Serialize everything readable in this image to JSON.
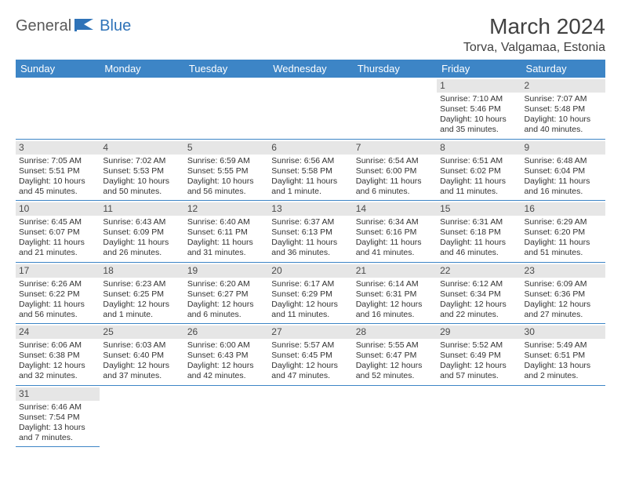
{
  "logo": {
    "part1": "General",
    "part2": "Blue"
  },
  "title": "March 2024",
  "location": "Torva, Valgamaa, Estonia",
  "colors": {
    "header_bg": "#3d85c6",
    "header_text": "#ffffff",
    "daynum_bg": "#e6e6e6",
    "rule": "#3d85c6",
    "logo_gray": "#5a5a5a",
    "logo_blue": "#2f73b8"
  },
  "weekdays": [
    "Sunday",
    "Monday",
    "Tuesday",
    "Wednesday",
    "Thursday",
    "Friday",
    "Saturday"
  ],
  "weeks": [
    [
      null,
      null,
      null,
      null,
      null,
      {
        "n": "1",
        "sr": "Sunrise: 7:10 AM",
        "ss": "Sunset: 5:46 PM",
        "d1": "Daylight: 10 hours",
        "d2": "and 35 minutes."
      },
      {
        "n": "2",
        "sr": "Sunrise: 7:07 AM",
        "ss": "Sunset: 5:48 PM",
        "d1": "Daylight: 10 hours",
        "d2": "and 40 minutes."
      }
    ],
    [
      {
        "n": "3",
        "sr": "Sunrise: 7:05 AM",
        "ss": "Sunset: 5:51 PM",
        "d1": "Daylight: 10 hours",
        "d2": "and 45 minutes."
      },
      {
        "n": "4",
        "sr": "Sunrise: 7:02 AM",
        "ss": "Sunset: 5:53 PM",
        "d1": "Daylight: 10 hours",
        "d2": "and 50 minutes."
      },
      {
        "n": "5",
        "sr": "Sunrise: 6:59 AM",
        "ss": "Sunset: 5:55 PM",
        "d1": "Daylight: 10 hours",
        "d2": "and 56 minutes."
      },
      {
        "n": "6",
        "sr": "Sunrise: 6:56 AM",
        "ss": "Sunset: 5:58 PM",
        "d1": "Daylight: 11 hours",
        "d2": "and 1 minute."
      },
      {
        "n": "7",
        "sr": "Sunrise: 6:54 AM",
        "ss": "Sunset: 6:00 PM",
        "d1": "Daylight: 11 hours",
        "d2": "and 6 minutes."
      },
      {
        "n": "8",
        "sr": "Sunrise: 6:51 AM",
        "ss": "Sunset: 6:02 PM",
        "d1": "Daylight: 11 hours",
        "d2": "and 11 minutes."
      },
      {
        "n": "9",
        "sr": "Sunrise: 6:48 AM",
        "ss": "Sunset: 6:04 PM",
        "d1": "Daylight: 11 hours",
        "d2": "and 16 minutes."
      }
    ],
    [
      {
        "n": "10",
        "sr": "Sunrise: 6:45 AM",
        "ss": "Sunset: 6:07 PM",
        "d1": "Daylight: 11 hours",
        "d2": "and 21 minutes."
      },
      {
        "n": "11",
        "sr": "Sunrise: 6:43 AM",
        "ss": "Sunset: 6:09 PM",
        "d1": "Daylight: 11 hours",
        "d2": "and 26 minutes."
      },
      {
        "n": "12",
        "sr": "Sunrise: 6:40 AM",
        "ss": "Sunset: 6:11 PM",
        "d1": "Daylight: 11 hours",
        "d2": "and 31 minutes."
      },
      {
        "n": "13",
        "sr": "Sunrise: 6:37 AM",
        "ss": "Sunset: 6:13 PM",
        "d1": "Daylight: 11 hours",
        "d2": "and 36 minutes."
      },
      {
        "n": "14",
        "sr": "Sunrise: 6:34 AM",
        "ss": "Sunset: 6:16 PM",
        "d1": "Daylight: 11 hours",
        "d2": "and 41 minutes."
      },
      {
        "n": "15",
        "sr": "Sunrise: 6:31 AM",
        "ss": "Sunset: 6:18 PM",
        "d1": "Daylight: 11 hours",
        "d2": "and 46 minutes."
      },
      {
        "n": "16",
        "sr": "Sunrise: 6:29 AM",
        "ss": "Sunset: 6:20 PM",
        "d1": "Daylight: 11 hours",
        "d2": "and 51 minutes."
      }
    ],
    [
      {
        "n": "17",
        "sr": "Sunrise: 6:26 AM",
        "ss": "Sunset: 6:22 PM",
        "d1": "Daylight: 11 hours",
        "d2": "and 56 minutes."
      },
      {
        "n": "18",
        "sr": "Sunrise: 6:23 AM",
        "ss": "Sunset: 6:25 PM",
        "d1": "Daylight: 12 hours",
        "d2": "and 1 minute."
      },
      {
        "n": "19",
        "sr": "Sunrise: 6:20 AM",
        "ss": "Sunset: 6:27 PM",
        "d1": "Daylight: 12 hours",
        "d2": "and 6 minutes."
      },
      {
        "n": "20",
        "sr": "Sunrise: 6:17 AM",
        "ss": "Sunset: 6:29 PM",
        "d1": "Daylight: 12 hours",
        "d2": "and 11 minutes."
      },
      {
        "n": "21",
        "sr": "Sunrise: 6:14 AM",
        "ss": "Sunset: 6:31 PM",
        "d1": "Daylight: 12 hours",
        "d2": "and 16 minutes."
      },
      {
        "n": "22",
        "sr": "Sunrise: 6:12 AM",
        "ss": "Sunset: 6:34 PM",
        "d1": "Daylight: 12 hours",
        "d2": "and 22 minutes."
      },
      {
        "n": "23",
        "sr": "Sunrise: 6:09 AM",
        "ss": "Sunset: 6:36 PM",
        "d1": "Daylight: 12 hours",
        "d2": "and 27 minutes."
      }
    ],
    [
      {
        "n": "24",
        "sr": "Sunrise: 6:06 AM",
        "ss": "Sunset: 6:38 PM",
        "d1": "Daylight: 12 hours",
        "d2": "and 32 minutes."
      },
      {
        "n": "25",
        "sr": "Sunrise: 6:03 AM",
        "ss": "Sunset: 6:40 PM",
        "d1": "Daylight: 12 hours",
        "d2": "and 37 minutes."
      },
      {
        "n": "26",
        "sr": "Sunrise: 6:00 AM",
        "ss": "Sunset: 6:43 PM",
        "d1": "Daylight: 12 hours",
        "d2": "and 42 minutes."
      },
      {
        "n": "27",
        "sr": "Sunrise: 5:57 AM",
        "ss": "Sunset: 6:45 PM",
        "d1": "Daylight: 12 hours",
        "d2": "and 47 minutes."
      },
      {
        "n": "28",
        "sr": "Sunrise: 5:55 AM",
        "ss": "Sunset: 6:47 PM",
        "d1": "Daylight: 12 hours",
        "d2": "and 52 minutes."
      },
      {
        "n": "29",
        "sr": "Sunrise: 5:52 AM",
        "ss": "Sunset: 6:49 PM",
        "d1": "Daylight: 12 hours",
        "d2": "and 57 minutes."
      },
      {
        "n": "30",
        "sr": "Sunrise: 5:49 AM",
        "ss": "Sunset: 6:51 PM",
        "d1": "Daylight: 13 hours",
        "d2": "and 2 minutes."
      }
    ],
    [
      {
        "n": "31",
        "sr": "Sunrise: 6:46 AM",
        "ss": "Sunset: 7:54 PM",
        "d1": "Daylight: 13 hours",
        "d2": "and 7 minutes."
      },
      null,
      null,
      null,
      null,
      null,
      null
    ]
  ]
}
